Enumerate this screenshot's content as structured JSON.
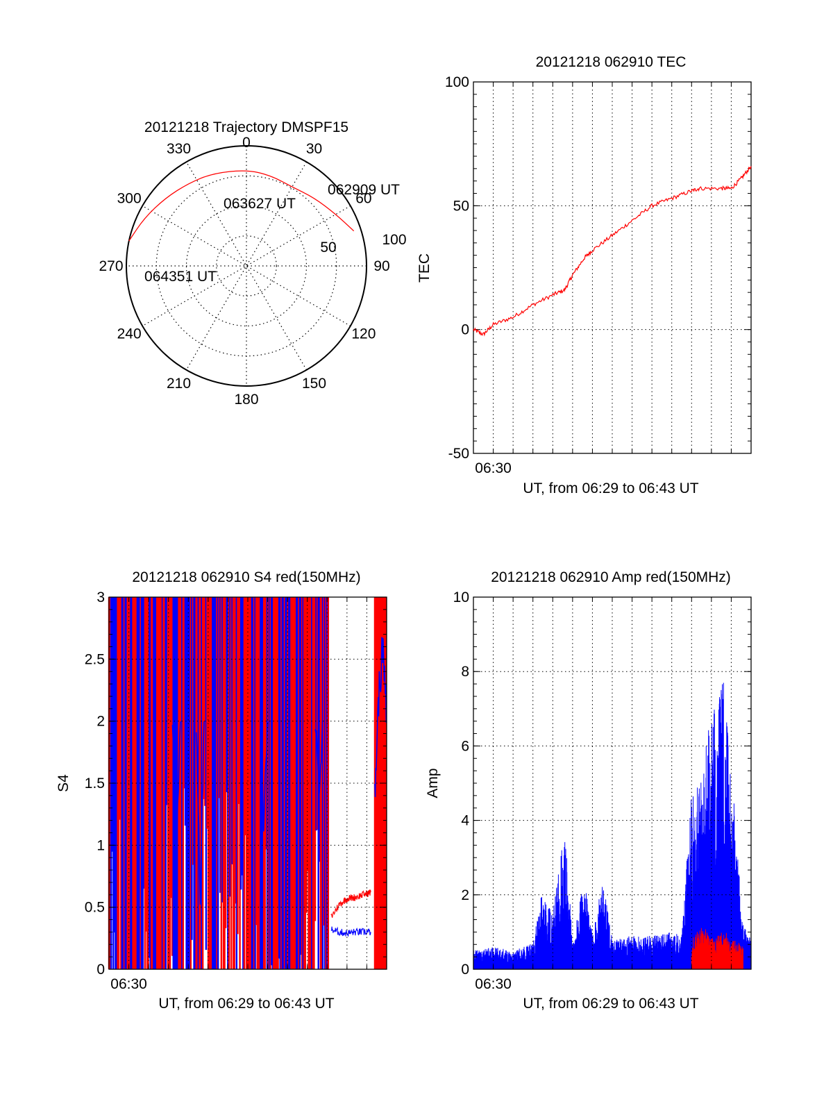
{
  "colors": {
    "red": "#ff0000",
    "blue": "#0000ff",
    "axis": "#000000",
    "grid": "#000000"
  },
  "chart_data": [
    {
      "type": "polar",
      "title": "20121218 Trajectory DMSPF15",
      "azimuth_labels": [
        "0",
        "30",
        "60",
        "90",
        "120",
        "150",
        "180",
        "210",
        "240",
        "270",
        "300",
        "330"
      ],
      "radial_labels": [
        "50",
        "100"
      ],
      "trajectory": {
        "color": "red",
        "points": [
          {
            "azimuth": 72,
            "zenith": 94
          },
          {
            "azimuth": 60,
            "zenith": 86
          },
          {
            "azimuth": 45,
            "zenith": 80
          },
          {
            "azimuth": 30,
            "zenith": 76
          },
          {
            "azimuth": 15,
            "zenith": 78
          },
          {
            "azimuth": 0,
            "zenith": 80
          },
          {
            "azimuth": -20,
            "zenith": 82
          },
          {
            "azimuth": -35,
            "zenith": 84
          },
          {
            "azimuth": -50,
            "zenith": 88
          },
          {
            "azimuth": -65,
            "zenith": 94
          },
          {
            "azimuth": -78,
            "zenith": 100
          }
        ]
      },
      "annotations": [
        {
          "text": "062909 UT",
          "azimuth": 72,
          "zenith": 94
        },
        {
          "text": "063627 UT",
          "azimuth": -12,
          "zenith": 55
        },
        {
          "text": "064351 UT",
          "azimuth": -80,
          "zenith": 88
        }
      ]
    },
    {
      "type": "line",
      "title": "20121218 062910 TEC",
      "xlabel": "UT, from 06:29 to 06:43 UT",
      "ylabel": "TEC",
      "xlim": [
        0,
        14
      ],
      "ylim": [
        -50,
        100
      ],
      "ytick_labels": [
        "-50",
        "0",
        "50",
        "100"
      ],
      "xtick_labels": [
        {
          "x": 1,
          "label": "06:30"
        }
      ],
      "series": [
        {
          "color": "red",
          "x": [
            0,
            0.5,
            1,
            2,
            3,
            4,
            4.6,
            5,
            5.6,
            6,
            7,
            8,
            9,
            10,
            11,
            11.4,
            12.5,
            13,
            13.5,
            14
          ],
          "y": [
            0,
            -2,
            2,
            5,
            10,
            14,
            16,
            22,
            29,
            32,
            38,
            44,
            50,
            53,
            56,
            57,
            57,
            57,
            61,
            66
          ]
        }
      ]
    },
    {
      "type": "line",
      "title": "20121218 062910 S4 red(150MHz)",
      "xlabel": "UT, from 06:29 to 06:43 UT",
      "ylabel": "S4",
      "xlim": [
        0,
        14
      ],
      "ylim": [
        0,
        3
      ],
      "ytick_labels": [
        "0",
        "0.5",
        "1",
        "1.5",
        "2",
        "2.5",
        "3"
      ],
      "xtick_labels": [
        {
          "x": 1,
          "label": "06:30"
        }
      ],
      "series": [
        {
          "name": "",
          "color": "red",
          "x": [
            11.2,
            11.6,
            12,
            12.4,
            12.8,
            13.2
          ],
          "y": [
            0.42,
            0.52,
            0.57,
            0.58,
            0.6,
            0.62
          ]
        },
        {
          "name": "",
          "color": "blue",
          "x": [
            11.2,
            11.6,
            12,
            12.4,
            12.8,
            13.2
          ],
          "y": [
            0.32,
            0.3,
            0.29,
            0.3,
            0.3,
            0.3
          ]
        }
      ],
      "saturated_range": {
        "start": 0,
        "end": 11.1,
        "ymax": 3
      },
      "saturated_range_2": {
        "start": 13.4,
        "end": 14,
        "ymax": 3
      }
    },
    {
      "type": "line",
      "title": "20121218 062910 Amp red(150MHz)",
      "xlabel": "UT, from 06:29 to 06:43 UT",
      "ylabel": "Amp",
      "xlim": [
        0,
        14
      ],
      "ylim": [
        0,
        10
      ],
      "ytick_labels": [
        "0",
        "2",
        "4",
        "6",
        "8",
        "10"
      ],
      "xtick_labels": [
        {
          "x": 1,
          "label": "06:30"
        }
      ],
      "series": [
        {
          "name": "",
          "color": "blue",
          "x": [
            0,
            1,
            2,
            3,
            3.4,
            4,
            4.6,
            5,
            5.6,
            6,
            6.5,
            7,
            8,
            9,
            10,
            10.5,
            11,
            11.5,
            12,
            12.6,
            13,
            13.6,
            14
          ],
          "y": [
            0.5,
            0.6,
            0.5,
            0.7,
            2.0,
            1.5,
            3.9,
            0.8,
            2.5,
            0.9,
            2.5,
            0.8,
            0.9,
            0.9,
            1.0,
            0.9,
            4.8,
            5.5,
            6.8,
            7.8,
            5.5,
            1.2,
            0.8
          ]
        },
        {
          "name": "",
          "color": "red",
          "x": [
            11,
            11.5,
            12,
            12.6,
            13.6
          ],
          "y": [
            0.8,
            1.2,
            0.9,
            1.1,
            0.6
          ]
        }
      ]
    }
  ]
}
